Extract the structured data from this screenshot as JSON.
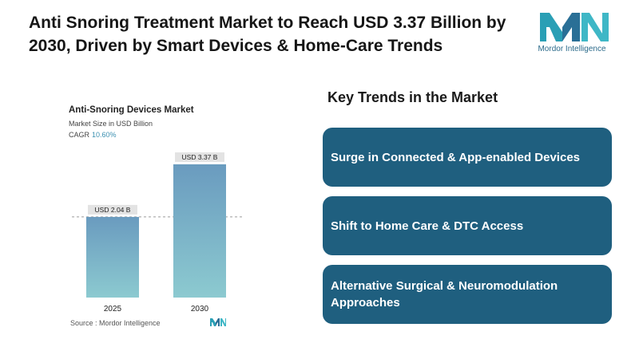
{
  "headline": "Anti Snoring Treatment Market to Reach USD 3.37 Billion by 2030, Driven by Smart Devices & Home-Care Trends",
  "brand": {
    "name": "Mordor Intelligence",
    "color": "#2b6a8a"
  },
  "chart_data": {
    "type": "bar",
    "title": "Anti-Snoring Devices Market",
    "subtitle": "Market Size in USD Billion",
    "cagr_label": "CAGR",
    "cagr_value": "10.60%",
    "categories": [
      "2025",
      "2030"
    ],
    "values": [
      2.04,
      3.37
    ],
    "data_labels": [
      "USD 2.04 B",
      "USD 3.37 B"
    ],
    "ylim": [
      0,
      3.37
    ],
    "grid": false,
    "reference_line": 2.04,
    "bar_color_top": "#6a9bbf",
    "bar_color_bottom": "#8ccad0",
    "source": "Source :  Mordor Intelligence"
  },
  "trends": {
    "title": "Key Trends in the Market",
    "color": "#1f5f7f",
    "items": [
      {
        "label": "Surge in Connected & App-enabled Devices"
      },
      {
        "label": "Shift to Home Care & DTC Access"
      },
      {
        "label": "Alternative Surgical & Neuromodulation Approaches"
      }
    ]
  }
}
